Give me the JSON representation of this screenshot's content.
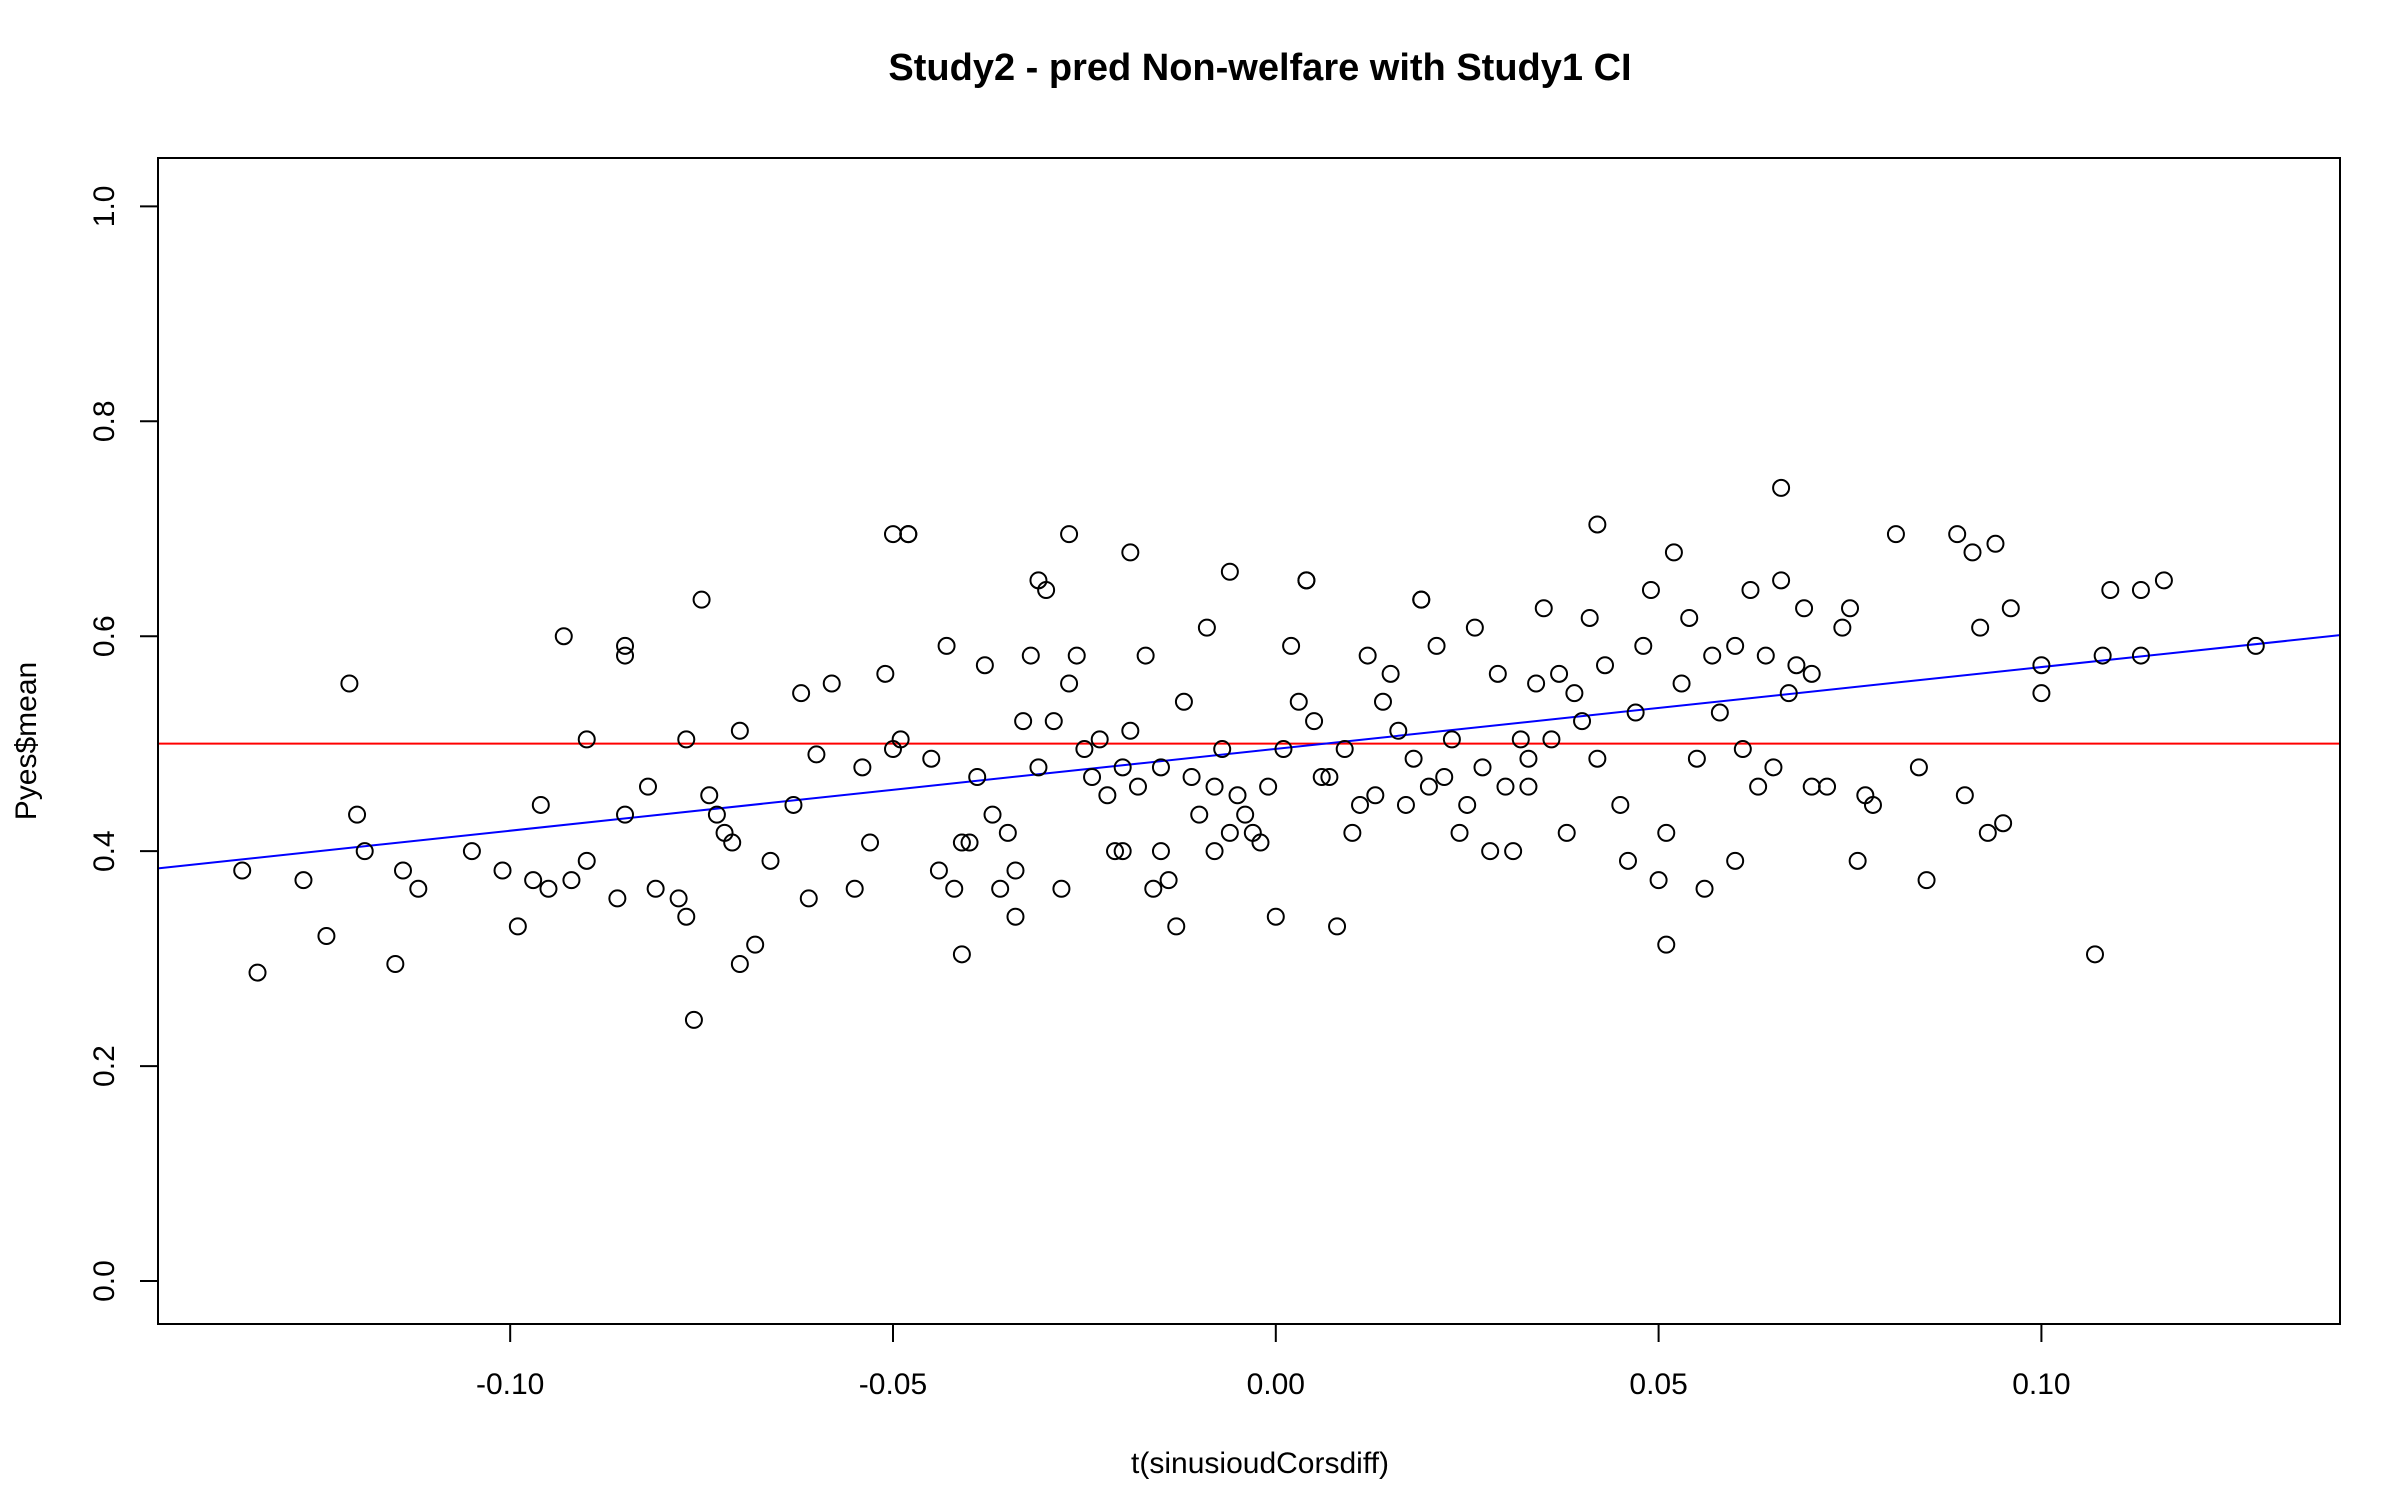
{
  "chart_data": {
    "type": "scatter",
    "title": "Study2 - pred Non-welfare with Study1 CI",
    "xlabel": "t(sinusioudCorsdiff)",
    "ylabel": "Pyes$mean",
    "xlim": [
      -0.146,
      0.139
    ],
    "ylim": [
      -0.04,
      1.045
    ],
    "xticks": [
      -0.1,
      -0.05,
      0.0,
      0.05,
      0.1
    ],
    "xtick_labels": [
      "-0.10",
      "-0.05",
      "0.00",
      "0.05",
      "0.10"
    ],
    "yticks": [
      0.0,
      0.2,
      0.4,
      0.6,
      0.8,
      1.0
    ],
    "ytick_labels": [
      "0.0",
      "0.2",
      "0.4",
      "0.6",
      "0.8",
      "1.0"
    ],
    "grid": false,
    "series": [
      {
        "marker": "open-circle",
        "color": "#000000",
        "x": [
          -0.135,
          -0.133,
          -0.127,
          -0.124,
          -0.121,
          -0.12,
          -0.119,
          -0.115,
          -0.114,
          -0.112,
          -0.105,
          -0.101,
          -0.099,
          -0.097,
          -0.096,
          -0.095,
          -0.093,
          -0.092,
          -0.09,
          -0.09,
          -0.086,
          -0.085,
          -0.085,
          -0.085,
          -0.082,
          -0.081,
          -0.078,
          -0.077,
          -0.077,
          -0.076,
          -0.075,
          -0.074,
          -0.073,
          -0.072,
          -0.071,
          -0.07,
          -0.07,
          -0.068,
          -0.066,
          -0.063,
          -0.062,
          -0.061,
          -0.06,
          -0.058,
          -0.055,
          -0.054,
          -0.053,
          -0.051,
          -0.05,
          -0.049,
          -0.048,
          -0.045,
          -0.044,
          -0.043,
          -0.042,
          -0.041,
          -0.04,
          -0.039,
          -0.038,
          -0.037,
          -0.036,
          -0.035,
          -0.034,
          -0.033,
          -0.032,
          -0.031,
          -0.03,
          -0.029,
          -0.028,
          -0.027,
          -0.026,
          -0.025,
          -0.024,
          -0.023,
          -0.022,
          -0.021,
          -0.02,
          -0.019,
          -0.018,
          -0.017,
          -0.016,
          -0.015,
          -0.014,
          -0.013,
          -0.012,
          -0.011,
          -0.01,
          -0.009,
          -0.008,
          -0.007,
          -0.006,
          -0.005,
          -0.004,
          -0.003,
          -0.002,
          -0.001,
          0.0,
          0.001,
          0.002,
          0.003,
          0.004,
          0.005,
          0.006,
          0.007,
          0.008,
          0.009,
          0.01,
          0.011,
          0.012,
          0.013,
          0.014,
          0.015,
          0.016,
          0.017,
          0.018,
          0.019,
          0.02,
          0.021,
          0.022,
          0.023,
          0.024,
          0.025,
          0.026,
          0.027,
          0.028,
          0.029,
          0.03,
          0.031,
          0.032,
          0.033,
          0.034,
          0.035,
          0.036,
          0.037,
          0.038,
          0.039,
          0.04,
          0.041,
          0.042,
          0.043,
          0.045,
          0.047,
          0.048,
          0.049,
          0.05,
          0.051,
          0.052,
          0.053,
          0.054,
          0.055,
          0.057,
          0.058,
          0.06,
          0.061,
          0.062,
          0.063,
          0.064,
          0.065,
          0.066,
          0.067,
          0.068,
          0.069,
          0.07,
          0.072,
          0.074,
          0.075,
          0.076,
          0.077,
          0.078,
          0.081,
          0.084,
          0.085,
          0.089,
          0.09,
          0.091,
          0.092,
          0.093,
          0.094,
          0.095,
          0.096,
          0.1,
          0.1,
          0.107,
          0.108,
          0.109,
          0.113,
          0.113,
          0.116,
          0.128,
          -0.05,
          -0.048,
          -0.031,
          -0.027,
          -0.019,
          -0.006,
          0.004,
          0.019,
          0.042,
          0.051,
          0.066,
          -0.034,
          -0.041,
          -0.008,
          0.033,
          0.06,
          0.07,
          -0.015,
          0.046,
          0.056,
          -0.02
        ],
        "y": [
          0.382,
          0.287,
          0.373,
          0.321,
          0.556,
          0.434,
          0.4,
          0.295,
          0.382,
          0.365,
          0.4,
          0.382,
          0.33,
          0.373,
          0.443,
          0.365,
          0.6,
          0.373,
          0.504,
          0.391,
          0.356,
          0.582,
          0.591,
          0.434,
          0.46,
          0.365,
          0.356,
          0.339,
          0.504,
          0.243,
          0.634,
          0.452,
          0.434,
          0.417,
          0.408,
          0.295,
          0.512,
          0.313,
          0.391,
          0.443,
          0.547,
          0.356,
          0.49,
          0.556,
          0.365,
          0.478,
          0.408,
          0.565,
          0.495,
          0.504,
          0.695,
          0.486,
          0.382,
          0.591,
          0.365,
          0.408,
          0.408,
          0.469,
          0.573,
          0.434,
          0.365,
          0.417,
          0.339,
          0.521,
          0.582,
          0.478,
          0.643,
          0.521,
          0.365,
          0.556,
          0.582,
          0.495,
          0.469,
          0.504,
          0.452,
          0.4,
          0.478,
          0.512,
          0.46,
          0.582,
          0.365,
          0.478,
          0.373,
          0.33,
          0.539,
          0.469,
          0.434,
          0.608,
          0.46,
          0.495,
          0.417,
          0.452,
          0.434,
          0.417,
          0.408,
          0.46,
          0.339,
          0.495,
          0.591,
          0.539,
          0.652,
          0.521,
          0.469,
          0.469,
          0.33,
          0.495,
          0.417,
          0.443,
          0.582,
          0.452,
          0.539,
          0.565,
          0.512,
          0.443,
          0.486,
          0.634,
          0.46,
          0.591,
          0.469,
          0.504,
          0.417,
          0.443,
          0.608,
          0.478,
          0.4,
          0.565,
          0.46,
          0.4,
          0.504,
          0.486,
          0.556,
          0.626,
          0.504,
          0.565,
          0.417,
          0.547,
          0.521,
          0.617,
          0.486,
          0.573,
          0.443,
          0.529,
          0.591,
          0.643,
          0.373,
          0.417,
          0.678,
          0.556,
          0.617,
          0.486,
          0.582,
          0.529,
          0.591,
          0.495,
          0.643,
          0.46,
          0.582,
          0.478,
          0.652,
          0.547,
          0.573,
          0.626,
          0.565,
          0.46,
          0.608,
          0.626,
          0.391,
          0.452,
          0.443,
          0.695,
          0.478,
          0.373,
          0.695,
          0.452,
          0.678,
          0.608,
          0.417,
          0.686,
          0.426,
          0.626,
          0.573,
          0.547,
          0.304,
          0.582,
          0.643,
          0.643,
          0.582,
          0.652,
          0.591,
          0.695,
          0.695,
          0.652,
          0.695,
          0.678,
          0.66,
          0.652,
          0.634,
          0.704,
          0.313,
          0.738,
          0.382,
          0.304,
          0.4,
          0.46,
          0.391,
          0.46,
          0.4,
          0.391,
          0.365,
          0.4
        ]
      }
    ],
    "lines": [
      {
        "kind": "horizontal",
        "y": 0.5,
        "color": "#ff0000"
      },
      {
        "kind": "regression",
        "x": [
          -0.146,
          0.139
        ],
        "y": [
          0.384,
          0.601
        ],
        "color": "#0000ff"
      }
    ]
  }
}
